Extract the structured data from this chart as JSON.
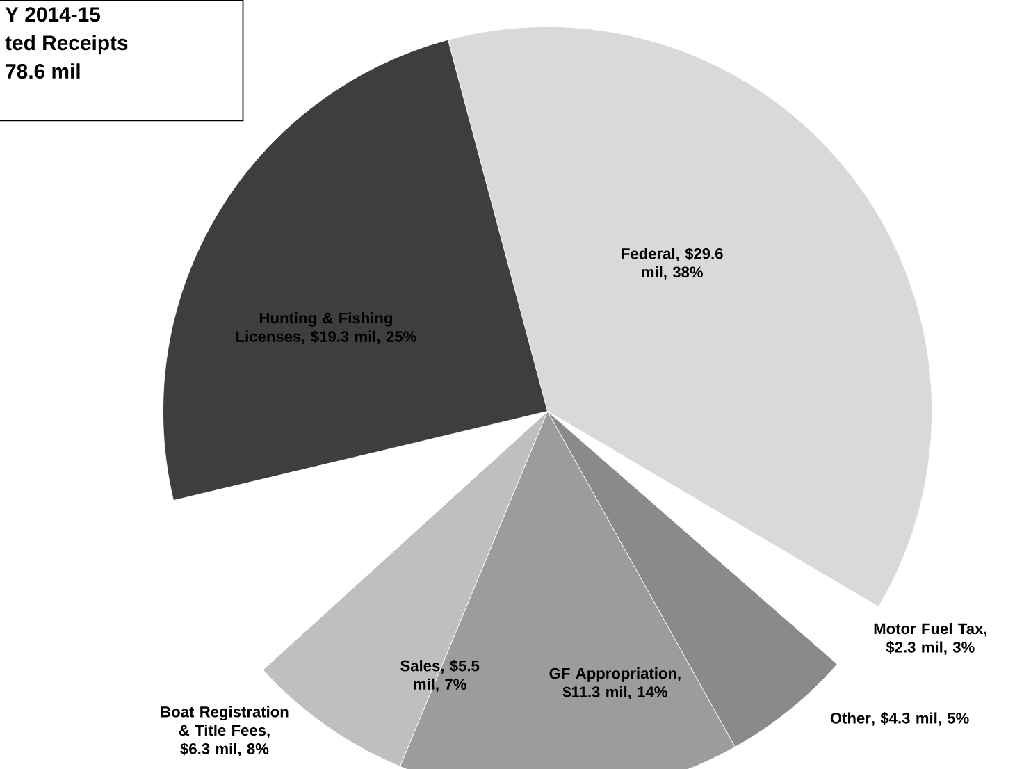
{
  "chart_data": {
    "type": "pie",
    "title": "Y 2014-15",
    "subtitle": "ted Receipts",
    "annotations": [
      "78.6 mil"
    ],
    "categories": [
      "Federal",
      "Motor Fuel Tax",
      "Other",
      "GF Appropriation",
      "Sales",
      "Boat Registration & Title Fees",
      "Hunting & Fishing Licenses"
    ],
    "values": [
      29.6,
      2.3,
      4.3,
      11.3,
      5.5,
      6.3,
      19.3
    ],
    "value_labels": [
      ", $29.6 mil, 38%",
      ", $2.3 mil, 3%",
      ",  $4.3 mil, 5%",
      ", $11.3 mil, 14%",
      ", $5.5 mil, 7%",
      ", $6.3 mil, 8%",
      ", $19.3 mil, 25%"
    ],
    "colors": [
      "#d9d9d9",
      "#ffffff",
      "#8a8a8a",
      "#9c9c9c",
      "#bfbfbf",
      "#ffffff",
      "#3e3e3e"
    ]
  }
}
